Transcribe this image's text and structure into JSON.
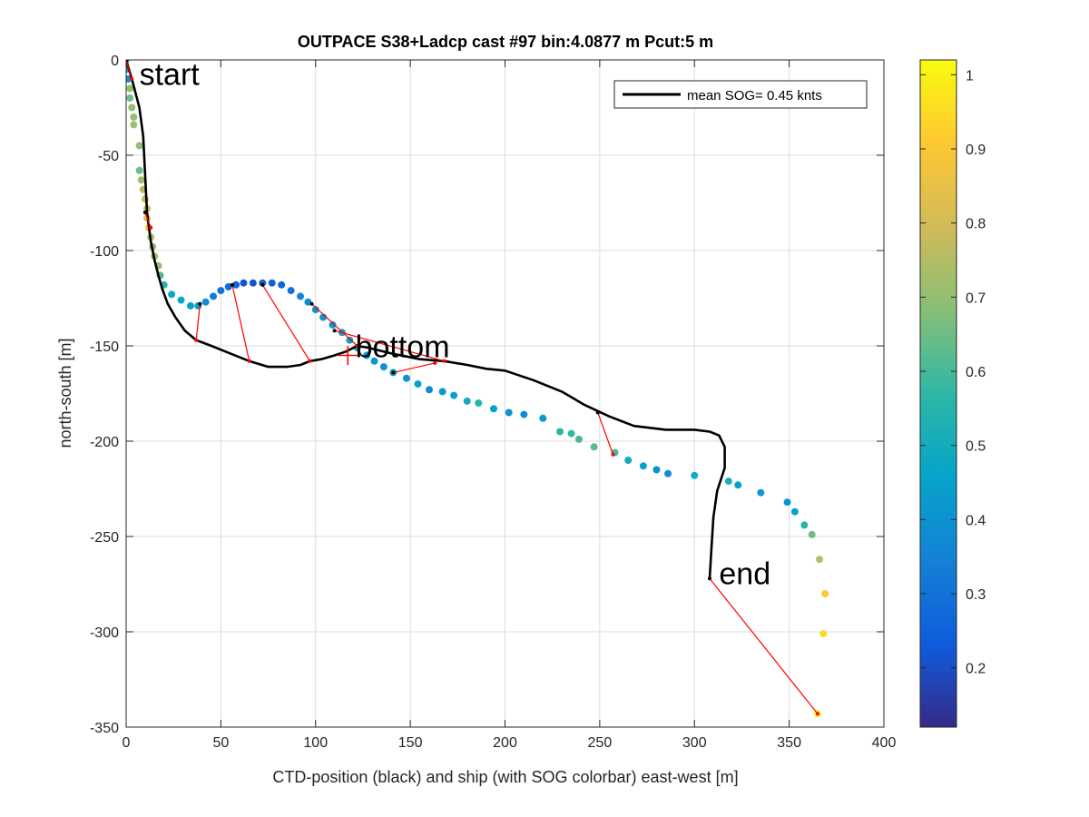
{
  "chart_data": {
    "type": "scatter",
    "title": "OUTPACE S38+Ladcp cast #97 bin:4.0877 m  Pcut:5 m",
    "xlabel": "CTD-position (black) and ship (with SOG colorbar) east-west [m]",
    "ylabel": "north-south [m]",
    "xlim": [
      0,
      400
    ],
    "ylim": [
      -350,
      0
    ],
    "xticks": [
      "0",
      "50",
      "100",
      "150",
      "200",
      "250",
      "300",
      "350",
      "400"
    ],
    "yticks": [
      "0",
      "-50",
      "-100",
      "-150",
      "-200",
      "-250",
      "-300",
      "-350"
    ],
    "grid": true,
    "legend": {
      "position": "top-right",
      "entries": [
        "mean SOG=  0.45 knts"
      ]
    },
    "colorbar": {
      "range": [
        0.12,
        1.02
      ],
      "ticks": [
        "0.2",
        "0.3",
        "0.4",
        "0.5",
        "0.6",
        "0.7",
        "0.8",
        "0.9",
        "1"
      ],
      "colormap": "parula"
    },
    "annotations": [
      {
        "text": "start",
        "x": 7,
        "y": -13
      },
      {
        "text": "bottom",
        "x": 121,
        "y": -156
      },
      {
        "text": "end",
        "x": 313,
        "y": -275
      }
    ],
    "series": [
      {
        "type": "line",
        "color": "#000000",
        "points": [
          [
            0,
            0
          ],
          [
            3,
            -10
          ],
          [
            7,
            -25
          ],
          [
            9,
            -40
          ],
          [
            10,
            -60
          ],
          [
            11,
            -80
          ],
          [
            13,
            -95
          ],
          [
            15,
            -105
          ],
          [
            17,
            -113
          ],
          [
            19,
            -120
          ],
          [
            22,
            -128
          ],
          [
            26,
            -135
          ],
          [
            31,
            -142
          ],
          [
            37,
            -147
          ],
          [
            45,
            -150
          ],
          [
            55,
            -154
          ],
          [
            65,
            -158
          ],
          [
            75,
            -161
          ],
          [
            85,
            -161
          ],
          [
            92,
            -160
          ],
          [
            97,
            -158
          ],
          [
            103,
            -157
          ],
          [
            110,
            -155
          ],
          [
            116,
            -153
          ],
          [
            122,
            -150
          ],
          [
            128,
            -151
          ],
          [
            140,
            -154
          ],
          [
            155,
            -157
          ],
          [
            168,
            -158
          ],
          [
            180,
            -160
          ],
          [
            190,
            -162
          ],
          [
            200,
            -163
          ],
          [
            215,
            -168
          ],
          [
            230,
            -174
          ],
          [
            242,
            -181
          ],
          [
            255,
            -187
          ],
          [
            268,
            -192
          ],
          [
            285,
            -194
          ],
          [
            300,
            -194
          ],
          [
            308,
            -195
          ],
          [
            313,
            -197
          ],
          [
            316,
            -203
          ],
          [
            316,
            -214
          ],
          [
            312,
            -226
          ],
          [
            310,
            -240
          ],
          [
            309,
            -256
          ],
          [
            308,
            -272
          ]
        ]
      },
      {
        "type": "scatter",
        "name": "ship SOG",
        "points": [
          [
            0,
            0,
            0.5
          ],
          [
            0,
            -5,
            0.45
          ],
          [
            1,
            -10,
            0.4
          ],
          [
            2,
            -15,
            0.7
          ],
          [
            2,
            -20,
            0.65
          ],
          [
            3,
            -25,
            0.7
          ],
          [
            4,
            -30,
            0.7
          ],
          [
            4,
            -34,
            0.72
          ],
          [
            7,
            -45,
            0.7
          ],
          [
            7,
            -58,
            0.65
          ],
          [
            8,
            -63,
            0.72
          ],
          [
            9,
            -68,
            0.75
          ],
          [
            10,
            -73,
            0.78
          ],
          [
            11,
            -78,
            0.8
          ],
          [
            11,
            -83,
            0.82
          ],
          [
            12,
            -88,
            0.85
          ],
          [
            13,
            -93,
            0.75
          ],
          [
            14,
            -98,
            0.7
          ],
          [
            15,
            -103,
            0.72
          ],
          [
            17,
            -108,
            0.7
          ],
          [
            18,
            -113,
            0.62
          ],
          [
            20,
            -118,
            0.55
          ],
          [
            24,
            -123,
            0.48
          ],
          [
            29,
            -126,
            0.47
          ],
          [
            34,
            -129,
            0.46
          ],
          [
            38,
            -129,
            0.44
          ],
          [
            42,
            -127,
            0.4
          ],
          [
            46,
            -124,
            0.33
          ],
          [
            50,
            -121,
            0.3
          ],
          [
            54,
            -119,
            0.28
          ],
          [
            58,
            -118,
            0.25
          ],
          [
            62,
            -117,
            0.22
          ],
          [
            67,
            -117,
            0.22
          ],
          [
            72,
            -117,
            0.23
          ],
          [
            77,
            -117,
            0.25
          ],
          [
            82,
            -118,
            0.27
          ],
          [
            87,
            -121,
            0.3
          ],
          [
            92,
            -124,
            0.35
          ],
          [
            96,
            -127,
            0.38
          ],
          [
            100,
            -131,
            0.4
          ],
          [
            104,
            -135,
            0.42
          ],
          [
            109,
            -139,
            0.43
          ],
          [
            114,
            -143,
            0.45
          ],
          [
            118,
            -147,
            0.45
          ],
          [
            122,
            -151,
            0.43
          ],
          [
            127,
            -155,
            0.42
          ],
          [
            131,
            -158,
            0.41
          ],
          [
            136,
            -161,
            0.4
          ],
          [
            141,
            -164,
            0.45
          ],
          [
            148,
            -167,
            0.4
          ],
          [
            154,
            -170,
            0.45
          ],
          [
            160,
            -173,
            0.38
          ],
          [
            167,
            -174,
            0.42
          ],
          [
            173,
            -176,
            0.45
          ],
          [
            180,
            -179,
            0.5
          ],
          [
            186,
            -180,
            0.55
          ],
          [
            194,
            -183,
            0.45
          ],
          [
            202,
            -185,
            0.4
          ],
          [
            210,
            -186,
            0.38
          ],
          [
            220,
            -188,
            0.42
          ],
          [
            229,
            -195,
            0.55
          ],
          [
            235,
            -196,
            0.58
          ],
          [
            239,
            -199,
            0.6
          ],
          [
            247,
            -203,
            0.62
          ],
          [
            258,
            -206,
            0.6
          ],
          [
            265,
            -210,
            0.5
          ],
          [
            273,
            -213,
            0.45
          ],
          [
            280,
            -215,
            0.4
          ],
          [
            286,
            -217,
            0.38
          ],
          [
            300,
            -218,
            0.5
          ],
          [
            318,
            -221,
            0.52
          ],
          [
            323,
            -223,
            0.45
          ],
          [
            335,
            -227,
            0.42
          ],
          [
            349,
            -232,
            0.4
          ],
          [
            353,
            -237,
            0.45
          ],
          [
            358,
            -244,
            0.55
          ],
          [
            362,
            -249,
            0.65
          ],
          [
            366,
            -262,
            0.75
          ],
          [
            369,
            -280,
            0.9
          ],
          [
            368,
            -301,
            0.95
          ],
          [
            365,
            -343,
            1.0
          ]
        ]
      },
      {
        "type": "segments",
        "color": "#ff0000",
        "pairs": [
          [
            [
              0,
              0
            ],
            [
              3,
              -10
            ]
          ],
          [
            [
              10,
              -80
            ],
            [
              13,
              -88
            ]
          ],
          [
            [
              39,
              -128
            ],
            [
              37,
              -147
            ]
          ],
          [
            [
              56,
              -118
            ],
            [
              65,
              -158
            ]
          ],
          [
            [
              72,
              -118
            ],
            [
              97,
              -158
            ]
          ],
          [
            [
              98,
              -128
            ],
            [
              122,
              -150
            ]
          ],
          [
            [
              110,
              -142
            ],
            [
              168,
              -158
            ]
          ],
          [
            [
              141,
              -164
            ],
            [
              163,
              -159
            ]
          ],
          [
            [
              249,
              -185
            ],
            [
              257,
              -207
            ]
          ],
          [
            [
              308,
              -272
            ],
            [
              365,
              -343
            ]
          ]
        ]
      }
    ]
  }
}
